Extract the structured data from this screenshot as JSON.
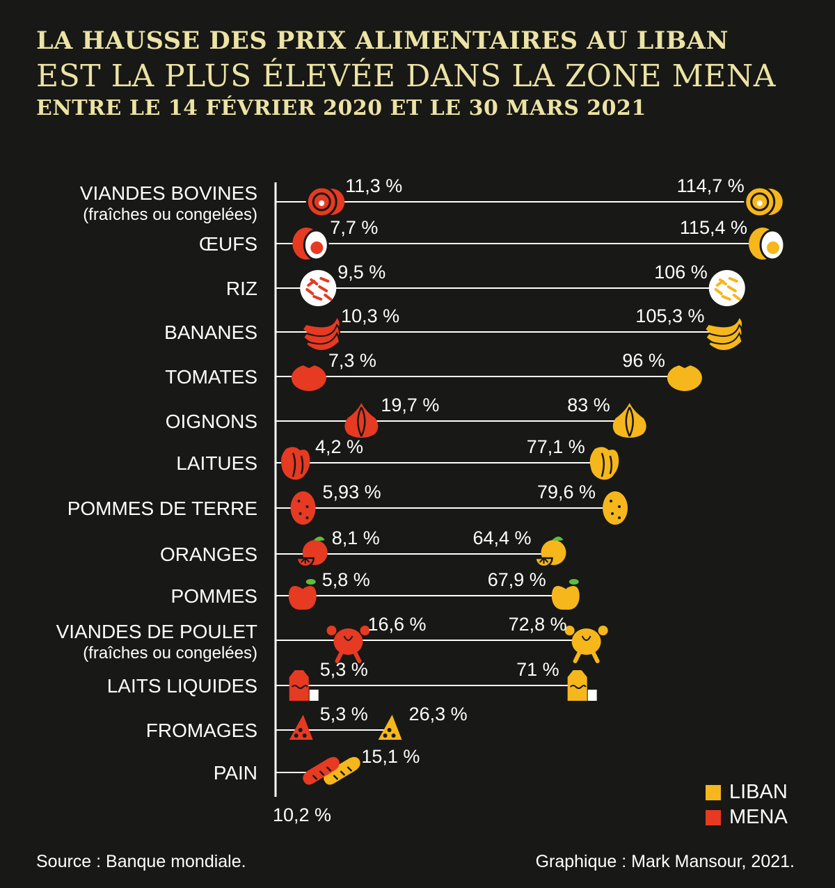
{
  "title_line1": "LA HAUSSE DES PRIX ALIMENTAIRES AU LIBAN",
  "title_line2": "EST LA PLUS ÉLEVÉE DANS LA ZONE MENA",
  "title_line3": "ENTRE LE 14 FÉVRIER 2020 ET LE 30 MARS 2021",
  "source": "Source : Banque mondiale.",
  "credit": "Graphique : Mark Mansour, 2021.",
  "colors": {
    "background": "#181816",
    "title": "#ece3a4",
    "liban": "#f6b71c",
    "mena": "#e63a22",
    "text": "#ffffff"
  },
  "chart_data": {
    "type": "dumbbell",
    "axis_origin_label": "10,2 %",
    "legend_position": "bottom-right",
    "series": [
      {
        "name": "LIBAN",
        "color": "#f6b71c"
      },
      {
        "name": "MENA",
        "color": "#e63a22"
      }
    ],
    "items": [
      {
        "label": "VIANDES BOVINES",
        "sub": "(fraîches ou congelées)",
        "icon": "beef-steak-icon",
        "mena": 11.3,
        "mena_label": "11,3 %",
        "liban": 114.7,
        "liban_label": "114,7 %"
      },
      {
        "label": "ŒUFS",
        "icon": "egg-icon",
        "mena": 7.7,
        "mena_label": "7,7 %",
        "liban": 115.4,
        "liban_label": "115,4 %"
      },
      {
        "label": "RIZ",
        "icon": "rice-icon",
        "mena": 9.5,
        "mena_label": "9,5 %",
        "liban": 106,
        "liban_label": "106 %"
      },
      {
        "label": "BANANES",
        "icon": "banana-icon",
        "mena": 10.3,
        "mena_label": "10,3 %",
        "liban": 105.3,
        "liban_label": "105,3 %"
      },
      {
        "label": "TOMATES",
        "icon": "tomato-icon",
        "mena": 7.3,
        "mena_label": "7,3 %",
        "liban": 96,
        "liban_label": "96 %"
      },
      {
        "label": "OIGNONS",
        "icon": "onion-icon",
        "mena": 19.7,
        "mena_label": "19,7 %",
        "liban": 83,
        "liban_label": "83 %"
      },
      {
        "label": "LAITUES",
        "icon": "lettuce-icon",
        "mena": 4.2,
        "mena_label": "4,2 %",
        "liban": 77.1,
        "liban_label": "77,1 %"
      },
      {
        "label": "POMMES DE TERRE",
        "icon": "potato-icon",
        "mena": 5.93,
        "mena_label": "5,93 %",
        "liban": 79.6,
        "liban_label": "79,6 %"
      },
      {
        "label": "ORANGES",
        "icon": "orange-icon",
        "mena": 8.1,
        "mena_label": "8,1 %",
        "liban": 64.4,
        "liban_label": "64,4 %"
      },
      {
        "label": "POMMES",
        "icon": "apple-icon",
        "mena": 5.8,
        "mena_label": "5,8 %",
        "liban": 67.9,
        "liban_label": "67,9 %"
      },
      {
        "label": "VIANDES DE POULET",
        "sub": "(fraîches ou congelées)",
        "icon": "chicken-icon",
        "mena": 16.6,
        "mena_label": "16,6 %",
        "liban": 72.8,
        "liban_label": "72,8 %"
      },
      {
        "label": "LAITS LIQUIDES",
        "icon": "milk-icon",
        "mena": 5.3,
        "mena_label": "5,3 %",
        "liban": 71,
        "liban_label": "71 %"
      },
      {
        "label": "FROMAGES",
        "icon": "cheese-icon",
        "mena": 5.3,
        "mena_label": "5,3 %",
        "liban": 26.3,
        "liban_label": "26,3 %"
      },
      {
        "label": "PAIN",
        "icon": "bread-icon",
        "mena": 10.2,
        "mena_label": "",
        "liban": 15.1,
        "liban_label": "15,1 %"
      }
    ]
  }
}
